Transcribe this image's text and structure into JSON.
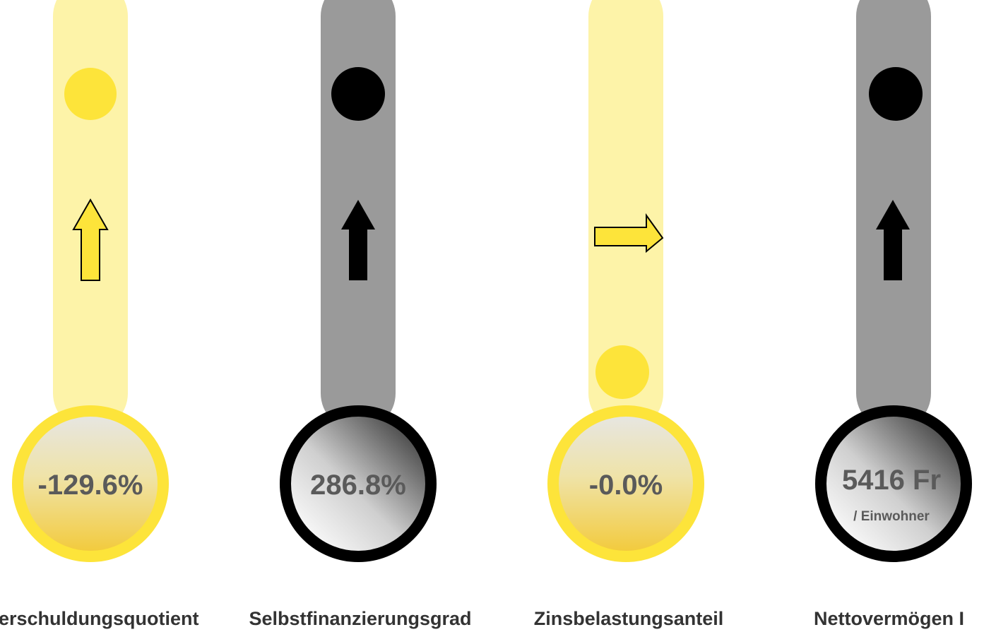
{
  "gauges": [
    {
      "value": "-129.6%",
      "label": "erschuldungsquotient"
    },
    {
      "value": "286.8%",
      "label": "Selbstfinanzierungsgrad"
    },
    {
      "value": "-0.0%",
      "label": "Zinsbelastungsanteil"
    },
    {
      "value": "5416 Fr",
      "unit": "/ Einwohner",
      "label": "Nettovermögen I"
    }
  ]
}
